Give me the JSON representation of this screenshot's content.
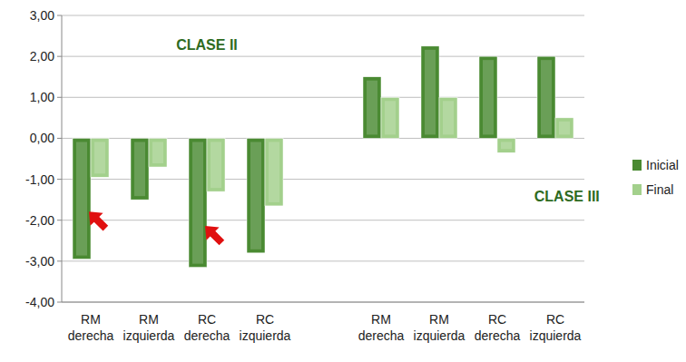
{
  "chart_data": {
    "type": "bar",
    "categories": [
      "RM derecha",
      "RM izquierda",
      "RC derecha",
      "RC izquierda",
      null,
      "RM derecha",
      "RM izquierda",
      "RC derecha",
      "RC izquierda"
    ],
    "series": [
      {
        "name": "Inicial",
        "color": "#4a8a32",
        "values": [
          -2.95,
          -1.5,
          -3.15,
          -2.8,
          null,
          1.5,
          2.25,
          2.0,
          2.0
        ]
      },
      {
        "name": "Final",
        "color": "#a3d08c",
        "values": [
          -0.95,
          -0.7,
          -1.3,
          -1.65,
          null,
          1.0,
          1.0,
          -0.35,
          0.5
        ]
      }
    ],
    "ylim": [
      -4,
      3
    ],
    "yticks": [
      {
        "value": -4,
        "label": "-4,00"
      },
      {
        "value": -3,
        "label": "-3,00"
      },
      {
        "value": -2,
        "label": "-2,00"
      },
      {
        "value": -1,
        "label": "-1,00"
      },
      {
        "value": 0,
        "label": "0,00"
      },
      {
        "value": 1,
        "label": "1,00"
      },
      {
        "value": 2,
        "label": "2,00"
      },
      {
        "value": 3,
        "label": "3,00"
      }
    ],
    "grid": true,
    "legend": "right",
    "annotations": [
      {
        "text": "CLASE II",
        "x": 2.0,
        "y": 2.3
      },
      {
        "text": "CLASE III",
        "x": 8.2,
        "y": -1.4
      }
    ]
  }
}
